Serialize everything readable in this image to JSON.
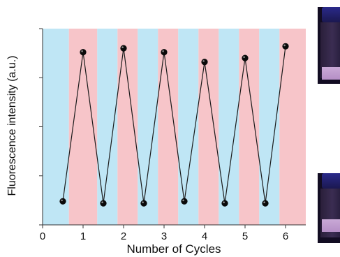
{
  "chart_data": {
    "type": "line",
    "xlabel": "Number of Cycles",
    "ylabel": "Fluorescence intensity (a.u.)",
    "xlim": [
      0,
      6.5
    ],
    "xticks": [
      "0",
      "1",
      "2",
      "3",
      "4",
      "5",
      "6"
    ],
    "ylim": [
      0,
      100
    ],
    "y_tick_labels_legible": false,
    "grid": false,
    "background_bands": [
      {
        "from": 0.0,
        "to": 0.65,
        "color": "#bfe6f5"
      },
      {
        "from": 0.65,
        "to": 1.35,
        "color": "#f7c5c9"
      },
      {
        "from": 1.35,
        "to": 1.85,
        "color": "#bfe6f5"
      },
      {
        "from": 1.85,
        "to": 2.35,
        "color": "#f7c5c9"
      },
      {
        "from": 2.35,
        "to": 2.85,
        "color": "#bfe6f5"
      },
      {
        "from": 2.85,
        "to": 3.35,
        "color": "#f7c5c9"
      },
      {
        "from": 3.35,
        "to": 3.85,
        "color": "#bfe6f5"
      },
      {
        "from": 3.85,
        "to": 4.35,
        "color": "#f7c5c9"
      },
      {
        "from": 4.35,
        "to": 4.85,
        "color": "#bfe6f5"
      },
      {
        "from": 4.85,
        "to": 5.35,
        "color": "#f7c5c9"
      },
      {
        "from": 5.35,
        "to": 5.85,
        "color": "#bfe6f5"
      },
      {
        "from": 5.85,
        "to": 6.5,
        "color": "#f7c5c9"
      }
    ],
    "series": [
      {
        "color": "#1a1a1a",
        "x": [
          0.5,
          1,
          1.5,
          2,
          2.5,
          3,
          3.5,
          4,
          4.5,
          5,
          5.5,
          6
        ],
        "y": [
          12,
          88,
          11,
          90,
          11,
          88,
          12,
          83,
          11,
          85,
          11,
          91
        ]
      }
    ],
    "colors": {
      "blue_band": "#bfe6f5",
      "red_band": "#f7c5c9",
      "line": "#1a1a1a",
      "marker": "#0a0a0a"
    }
  },
  "side_images": [
    {
      "icon": "vial-photo-icon",
      "liquid": "#c7a4d8"
    },
    {
      "icon": "vial-photo-icon",
      "liquid": "#c7a4d8"
    }
  ]
}
